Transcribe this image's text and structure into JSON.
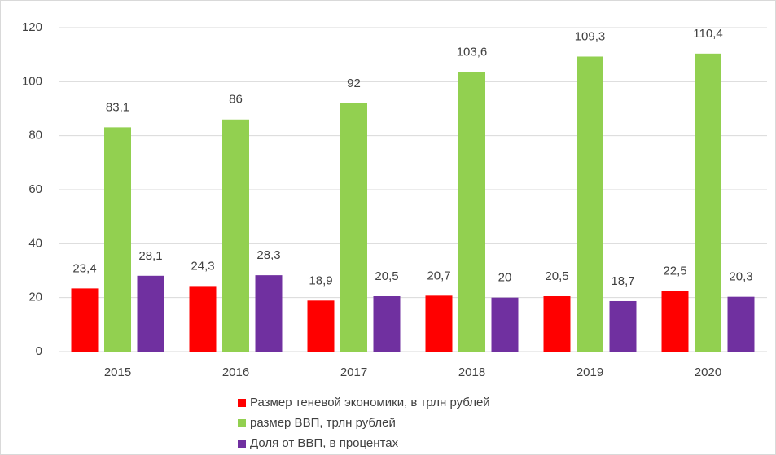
{
  "chart_data": {
    "type": "bar",
    "categories": [
      "2015",
      "2016",
      "2017",
      "2018",
      "2019",
      "2020"
    ],
    "series": [
      {
        "name": "Размер теневой экономики, в трлн рублей",
        "color": "#ff0000",
        "values": [
          23.4,
          24.3,
          18.9,
          20.7,
          20.5,
          22.5
        ],
        "value_labels": [
          "23,4",
          "24,3",
          "18,9",
          "20,7",
          "20,5",
          "22,5"
        ]
      },
      {
        "name": "размер ВВП, трлн рублей",
        "color": "#92d050",
        "values": [
          83.1,
          86,
          92,
          103.6,
          109.3,
          110.4
        ],
        "value_labels": [
          "83,1",
          "86",
          "92",
          "103,6",
          "109,3",
          "110,4"
        ]
      },
      {
        "name": "Доля от ВВП, в процентах",
        "color": "#7030a0",
        "values": [
          28.1,
          28.3,
          20.5,
          20,
          18.7,
          20.3
        ],
        "value_labels": [
          "28,1",
          "28,3",
          "20,5",
          "20",
          "18,7",
          "20,3"
        ]
      }
    ],
    "ylim": [
      0,
      120
    ],
    "yticks": [
      0,
      20,
      40,
      60,
      80,
      100,
      120
    ],
    "grid": true,
    "legend": "bottom"
  }
}
